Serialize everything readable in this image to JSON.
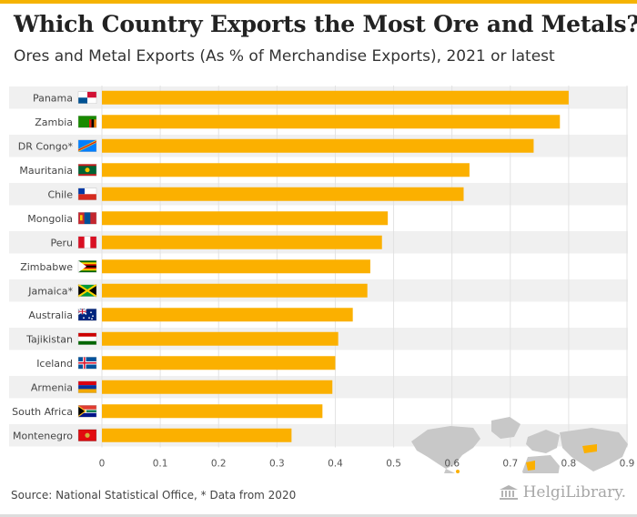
{
  "header": {
    "title": "Which Country Exports the Most Ore and Metals?",
    "subtitle": "Ores and Metal Exports (As % of Merchandise Exports), 2021 or latest"
  },
  "footer": {
    "source": "Source: National Statistical Office, * Data from 2020",
    "brand": "HelgiLibrary."
  },
  "colors": {
    "bar": "#fbb000",
    "band": "#f0f0f0",
    "map_land": "#c8c8c8",
    "map_highlight": "#fbb000"
  },
  "chart_data": {
    "type": "bar",
    "orientation": "horizontal",
    "categories": [
      "Panama",
      "Zambia",
      "DR Congo*",
      "Mauritania",
      "Chile",
      "Mongolia",
      "Peru",
      "Zimbabwe",
      "Jamaica*",
      "Australia",
      "Tajikistan",
      "Iceland",
      "Armenia",
      "South Africa",
      "Montenegro"
    ],
    "values": [
      0.8,
      0.785,
      0.74,
      0.63,
      0.62,
      0.49,
      0.48,
      0.46,
      0.455,
      0.43,
      0.405,
      0.4,
      0.395,
      0.378,
      0.325
    ],
    "xticks": [
      "0",
      "0.1",
      "0.2",
      "0.3",
      "0.4",
      "0.5",
      "0.6",
      "0.7",
      "0.8",
      "0.9"
    ],
    "xlim": [
      0,
      0.9
    ],
    "grid": true,
    "flag_icons": [
      "panama-flag-icon",
      "zambia-flag-icon",
      "dr-congo-flag-icon",
      "mauritania-flag-icon",
      "chile-flag-icon",
      "mongolia-flag-icon",
      "peru-flag-icon",
      "zimbabwe-flag-icon",
      "jamaica-flag-icon",
      "australia-flag-icon",
      "tajikistan-flag-icon",
      "iceland-flag-icon",
      "armenia-flag-icon",
      "south-africa-flag-icon",
      "montenegro-flag-icon"
    ],
    "world_map_inset": true
  }
}
